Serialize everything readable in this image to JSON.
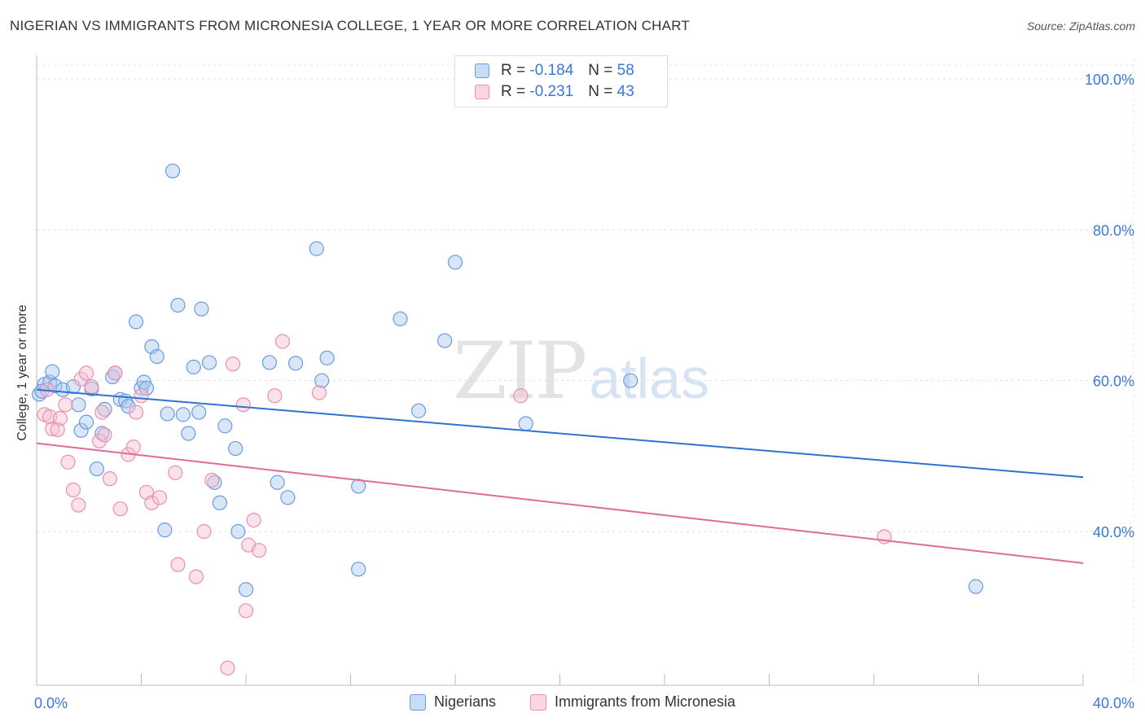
{
  "title": "NIGERIAN VS IMMIGRANTS FROM MICRONESIA COLLEGE, 1 YEAR OR MORE CORRELATION CHART",
  "source": "Source: ZipAtlas.com",
  "watermark": {
    "zip": "ZIP",
    "atlas": "atlas"
  },
  "legend_top": {
    "rows": [
      {
        "r_label": "R =",
        "r_value": "-0.184",
        "n_label": "N =",
        "n_value": "58",
        "color": "#a9c8ee",
        "border": "#6a9be0"
      },
      {
        "r_label": "R =",
        "r_value": "-0.231",
        "n_label": "N =",
        "n_value": "43",
        "color": "#f6bfd1",
        "border": "#e990b0"
      }
    ]
  },
  "legend_bottom": {
    "items": [
      {
        "label": "Nigerians",
        "color": "#a9c8ee",
        "border": "#6a9be0"
      },
      {
        "label": "Immigrants from Micronesia",
        "color": "#f6bfd1",
        "border": "#e990b0"
      }
    ]
  },
  "chart_data": {
    "type": "scatter",
    "title": "NIGERIAN VS IMMIGRANTS FROM MICRONESIA COLLEGE, 1 YEAR OR MORE CORRELATION CHART",
    "xlabel": "",
    "ylabel": "College, 1 year or more",
    "xlim": [
      0,
      40
    ],
    "ylim": [
      20,
      102
    ],
    "x_tick_labels": [
      "0.0%",
      "40.0%"
    ],
    "y_ticks": [
      40,
      60,
      80,
      100
    ],
    "y_tick_labels": [
      "40.0%",
      "60.0%",
      "80.0%",
      "100.0%"
    ],
    "grid": true,
    "series": [
      {
        "name": "Nigerians",
        "color": "#6a9be0",
        "fill": "#a9c8ee",
        "trend_color": "#2f72cf",
        "trend": {
          "x0": 0,
          "y0": 58.8,
          "x1": 40,
          "y1": 47.2
        },
        "points": [
          [
            0.1,
            58.2
          ],
          [
            0.3,
            59.5
          ],
          [
            0.5,
            59.8
          ],
          [
            0.6,
            61.2
          ],
          [
            0.7,
            59.3
          ],
          [
            1.0,
            58.8
          ],
          [
            1.4,
            59.2
          ],
          [
            1.6,
            56.8
          ],
          [
            1.7,
            53.4
          ],
          [
            1.9,
            54.5
          ],
          [
            2.1,
            58.9
          ],
          [
            2.3,
            48.3
          ],
          [
            2.5,
            53.0
          ],
          [
            2.6,
            56.2
          ],
          [
            2.9,
            60.5
          ],
          [
            3.0,
            61.0
          ],
          [
            3.2,
            57.5
          ],
          [
            3.4,
            57.3
          ],
          [
            3.5,
            56.6
          ],
          [
            3.8,
            67.8
          ],
          [
            4.0,
            59.0
          ],
          [
            4.1,
            59.8
          ],
          [
            4.2,
            59.0
          ],
          [
            4.4,
            64.5
          ],
          [
            4.6,
            63.2
          ],
          [
            4.9,
            40.2
          ],
          [
            5.0,
            55.6
          ],
          [
            5.2,
            87.8
          ],
          [
            5.4,
            70.0
          ],
          [
            5.6,
            55.5
          ],
          [
            5.8,
            53.0
          ],
          [
            6.0,
            61.8
          ],
          [
            6.2,
            55.8
          ],
          [
            6.3,
            69.5
          ],
          [
            6.6,
            62.4
          ],
          [
            6.8,
            46.5
          ],
          [
            7.0,
            43.8
          ],
          [
            7.2,
            54.0
          ],
          [
            7.6,
            51.0
          ],
          [
            7.7,
            40.0
          ],
          [
            8.0,
            32.3
          ],
          [
            8.9,
            62.4
          ],
          [
            9.2,
            46.5
          ],
          [
            9.6,
            44.5
          ],
          [
            9.9,
            62.3
          ],
          [
            10.7,
            77.5
          ],
          [
            10.9,
            60.0
          ],
          [
            11.1,
            63.0
          ],
          [
            12.3,
            46.0
          ],
          [
            12.3,
            35.0
          ],
          [
            13.9,
            68.2
          ],
          [
            14.6,
            56.0
          ],
          [
            15.6,
            65.3
          ],
          [
            16.0,
            75.7
          ],
          [
            18.7,
            54.3
          ],
          [
            22.7,
            60.0
          ],
          [
            35.9,
            32.7
          ],
          [
            0.2,
            58.6
          ]
        ]
      },
      {
        "name": "Immigrants from Micronesia",
        "color": "#e990b0",
        "fill": "#f6bfd1",
        "trend_color": "#e06b97",
        "trend": {
          "x0": 0,
          "y0": 51.7,
          "x1": 40,
          "y1": 35.8
        },
        "points": [
          [
            0.3,
            55.5
          ],
          [
            0.5,
            55.2
          ],
          [
            0.6,
            53.6
          ],
          [
            0.8,
            53.5
          ],
          [
            0.9,
            55.0
          ],
          [
            1.1,
            56.8
          ],
          [
            1.2,
            49.2
          ],
          [
            1.4,
            45.5
          ],
          [
            1.6,
            43.5
          ],
          [
            1.7,
            60.2
          ],
          [
            1.9,
            61.0
          ],
          [
            2.1,
            59.2
          ],
          [
            2.4,
            52.0
          ],
          [
            2.5,
            55.8
          ],
          [
            2.6,
            52.8
          ],
          [
            2.8,
            47.0
          ],
          [
            3.0,
            61.0
          ],
          [
            3.2,
            43.0
          ],
          [
            3.5,
            50.2
          ],
          [
            3.7,
            51.2
          ],
          [
            3.8,
            55.8
          ],
          [
            4.0,
            58.0
          ],
          [
            4.2,
            45.2
          ],
          [
            4.4,
            43.8
          ],
          [
            4.7,
            44.5
          ],
          [
            5.3,
            47.8
          ],
          [
            5.4,
            35.6
          ],
          [
            6.1,
            34.0
          ],
          [
            6.4,
            40.0
          ],
          [
            6.7,
            46.8
          ],
          [
            7.5,
            62.2
          ],
          [
            7.9,
            56.8
          ],
          [
            8.0,
            29.5
          ],
          [
            8.1,
            38.2
          ],
          [
            8.3,
            41.5
          ],
          [
            8.5,
            37.5
          ],
          [
            9.1,
            58.0
          ],
          [
            9.4,
            65.2
          ],
          [
            10.8,
            58.4
          ],
          [
            7.3,
            21.9
          ],
          [
            18.5,
            58.0
          ],
          [
            32.4,
            39.3
          ],
          [
            0.4,
            58.8
          ]
        ]
      }
    ]
  }
}
